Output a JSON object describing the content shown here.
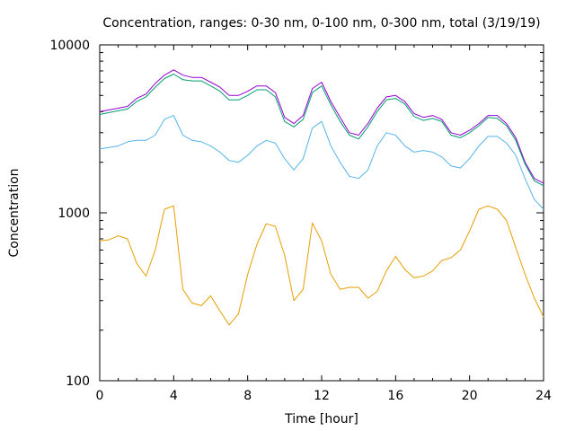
{
  "chart_data": {
    "type": "line",
    "title": "Concentration, ranges: 0-30 nm, 0-100 nm, 0-300 nm, total (3/19/19)",
    "xlabel": "Time [hour]",
    "ylabel": "Concentration",
    "xlim": [
      0,
      24
    ],
    "ylim": [
      100,
      10000
    ],
    "yscale": "log",
    "xticks": [
      0,
      4,
      8,
      12,
      16,
      20,
      24
    ],
    "yticks": [
      100,
      1000,
      10000
    ],
    "grid": false,
    "legend": "none",
    "series": [
      {
        "color": "#9400d3",
        "x": [
          0,
          0.5,
          1,
          1.5,
          2,
          2.5,
          3,
          3.5,
          4,
          4.5,
          5,
          5.5,
          6,
          6.5,
          7,
          7.5,
          8,
          8.5,
          9,
          9.5,
          10,
          10.5,
          11,
          11.5,
          12,
          12.5,
          13,
          13.5,
          14,
          14.5,
          15,
          15.5,
          16,
          16.5,
          17,
          17.5,
          18,
          18.5,
          19,
          19.5,
          20,
          20.5,
          21,
          21.5,
          22,
          22.5,
          23,
          23.5,
          24
        ],
        "values": [
          4000,
          4100,
          4200,
          4300,
          4800,
          5100,
          5900,
          6600,
          7100,
          6600,
          6400,
          6400,
          6000,
          5600,
          5000,
          5000,
          5300,
          5700,
          5700,
          5200,
          3700,
          3400,
          3800,
          5500,
          6000,
          4600,
          3700,
          3000,
          2900,
          3400,
          4200,
          4900,
          5000,
          4600,
          3900,
          3700,
          3800,
          3600,
          3000,
          2900,
          3100,
          3400,
          3800,
          3800,
          3400,
          2800,
          2000,
          1600,
          1500
        ]
      },
      {
        "color": "#009e73",
        "x": [
          0,
          0.5,
          1,
          1.5,
          2,
          2.5,
          3,
          3.5,
          4,
          4.5,
          5,
          5.5,
          6,
          6.5,
          7,
          7.5,
          8,
          8.5,
          9,
          9.5,
          10,
          10.5,
          11,
          11.5,
          12,
          12.5,
          13,
          13.5,
          14,
          14.5,
          15,
          15.5,
          16,
          16.5,
          17,
          17.5,
          18,
          18.5,
          19,
          19.5,
          20,
          20.5,
          21,
          21.5,
          22,
          22.5,
          23,
          23.5,
          24
        ],
        "values": [
          3850,
          3950,
          4050,
          4150,
          4600,
          4900,
          5600,
          6300,
          6700,
          6200,
          6100,
          6100,
          5700,
          5300,
          4700,
          4700,
          5000,
          5400,
          5400,
          4900,
          3500,
          3250,
          3600,
          5200,
          5700,
          4400,
          3500,
          2900,
          2750,
          3250,
          4000,
          4700,
          4800,
          4450,
          3750,
          3550,
          3650,
          3500,
          2900,
          2800,
          3000,
          3300,
          3700,
          3650,
          3300,
          2700,
          1950,
          1550,
          1450
        ]
      },
      {
        "color": "#56b4e9",
        "x": [
          0,
          0.5,
          1,
          1.5,
          2,
          2.5,
          3,
          3.5,
          4,
          4.5,
          5,
          5.5,
          6,
          6.5,
          7,
          7.5,
          8,
          8.5,
          9,
          9.5,
          10,
          10.5,
          11,
          11.5,
          12,
          12.5,
          13,
          13.5,
          14,
          14.5,
          15,
          15.5,
          16,
          16.5,
          17,
          17.5,
          18,
          18.5,
          19,
          19.5,
          20,
          20.5,
          21,
          21.5,
          22,
          22.5,
          23,
          23.5,
          24
        ],
        "values": [
          2400,
          2450,
          2500,
          2650,
          2700,
          2700,
          2900,
          3600,
          3800,
          2900,
          2700,
          2650,
          2500,
          2300,
          2050,
          2000,
          2200,
          2500,
          2700,
          2600,
          2100,
          1800,
          2100,
          3200,
          3500,
          2500,
          2000,
          1650,
          1600,
          1800,
          2500,
          3000,
          2900,
          2500,
          2300,
          2350,
          2300,
          2150,
          1900,
          1850,
          2100,
          2500,
          2850,
          2850,
          2600,
          2200,
          1600,
          1200,
          1050
        ]
      },
      {
        "color": "#e69f00",
        "x": [
          0,
          0.5,
          1,
          1.5,
          2,
          2.5,
          3,
          3.5,
          4,
          4.5,
          5,
          5.5,
          6,
          6.5,
          7,
          7.5,
          8,
          8.5,
          9,
          9.5,
          10,
          10.5,
          11,
          11.5,
          12,
          12.5,
          13,
          13.5,
          14,
          14.5,
          15,
          15.5,
          16,
          16.5,
          17,
          17.5,
          18,
          18.5,
          19,
          19.5,
          20,
          20.5,
          21,
          21.5,
          22,
          22.5,
          23,
          23.5,
          24
        ],
        "values": [
          680,
          690,
          730,
          700,
          500,
          420,
          600,
          1050,
          1100,
          350,
          290,
          280,
          320,
          260,
          215,
          250,
          430,
          650,
          860,
          830,
          560,
          300,
          350,
          870,
          680,
          430,
          350,
          360,
          360,
          310,
          340,
          450,
          550,
          460,
          410,
          420,
          450,
          520,
          540,
          600,
          780,
          1050,
          1100,
          1050,
          900,
          620,
          430,
          310,
          240
        ]
      }
    ]
  }
}
